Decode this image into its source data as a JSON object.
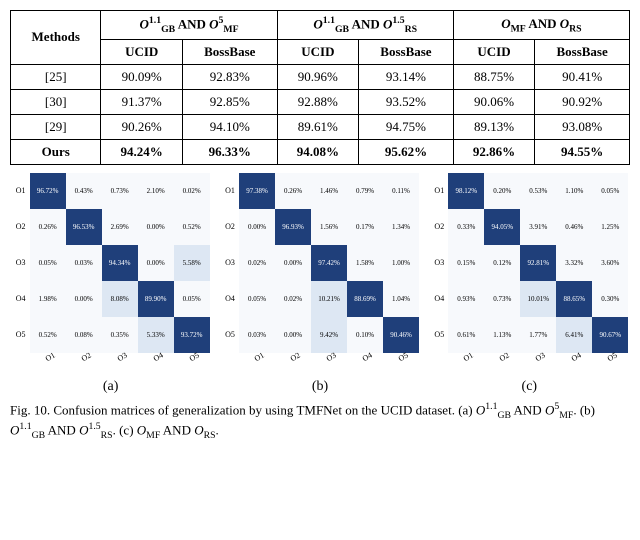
{
  "table": {
    "methods_header": "Methods",
    "group_headers": [
      {
        "o1": "O",
        "sub1": "GB",
        "sup1": "1.1",
        "mid": " AND ",
        "o2": "O",
        "sub2": "MF",
        "sup2": "5"
      },
      {
        "o1": "O",
        "sub1": "GB",
        "sup1": "1.1",
        "mid": " AND ",
        "o2": "O",
        "sub2": "RS",
        "sup2": "1.5"
      },
      {
        "o1": "O",
        "sub1": "MF",
        "sup1": "",
        "mid": " AND ",
        "o2": "O",
        "sub2": "RS",
        "sup2": ""
      }
    ],
    "sub_headers": [
      "UCID",
      "BossBase",
      "UCID",
      "BossBase",
      "UCID",
      "BossBase"
    ],
    "rows": [
      {
        "label": "[25]",
        "vals": [
          "90.09%",
          "92.83%",
          "90.96%",
          "93.14%",
          "88.75%",
          "90.41%"
        ],
        "bold": false
      },
      {
        "label": "[30]",
        "vals": [
          "91.37%",
          "92.85%",
          "92.88%",
          "93.52%",
          "90.06%",
          "90.92%"
        ],
        "bold": false
      },
      {
        "label": "[29]",
        "vals": [
          "90.26%",
          "94.10%",
          "89.61%",
          "94.75%",
          "89.13%",
          "93.08%"
        ],
        "bold": false
      },
      {
        "label": "Ours",
        "vals": [
          "94.24%",
          "96.33%",
          "94.08%",
          "95.62%",
          "92.86%",
          "94.55%"
        ],
        "bold": true
      }
    ]
  },
  "matrices": [
    {
      "labels": [
        "O1",
        "O2",
        "O3",
        "O4",
        "O5"
      ],
      "cells": [
        [
          "96.72%",
          "0.43%",
          "0.73%",
          "2.10%",
          "0.02%"
        ],
        [
          "0.26%",
          "96.53%",
          "2.69%",
          "0.00%",
          "0.52%"
        ],
        [
          "0.05%",
          "0.03%",
          "94.34%",
          "0.00%",
          "5.58%"
        ],
        [
          "1.98%",
          "0.00%",
          "8.08%",
          "89.90%",
          "0.05%"
        ],
        [
          "0.52%",
          "0.08%",
          "0.35%",
          "5.33%",
          "93.72%"
        ]
      ],
      "sub": "(a)"
    },
    {
      "labels": [
        "O1",
        "O2",
        "O3",
        "O4",
        "O5"
      ],
      "cells": [
        [
          "97.38%",
          "0.26%",
          "1.46%",
          "0.79%",
          "0.11%"
        ],
        [
          "0.00%",
          "96.93%",
          "1.56%",
          "0.17%",
          "1.34%"
        ],
        [
          "0.02%",
          "0.00%",
          "97.42%",
          "1.58%",
          "1.00%"
        ],
        [
          "0.05%",
          "0.02%",
          "10.21%",
          "88.69%",
          "1.04%"
        ],
        [
          "0.03%",
          "0.00%",
          "9.42%",
          "0.10%",
          "90.46%"
        ]
      ],
      "sub": "(b)"
    },
    {
      "labels": [
        "O1",
        "O2",
        "O3",
        "O4",
        "O5"
      ],
      "cells": [
        [
          "98.12%",
          "0.20%",
          "0.53%",
          "1.10%",
          "0.05%"
        ],
        [
          "0.33%",
          "94.05%",
          "3.91%",
          "0.46%",
          "1.25%"
        ],
        [
          "0.15%",
          "0.12%",
          "92.81%",
          "3.32%",
          "3.60%"
        ],
        [
          "0.93%",
          "0.73%",
          "10.01%",
          "88.65%",
          "0.30%"
        ],
        [
          "0.61%",
          "1.13%",
          "1.77%",
          "6.41%",
          "90.67%"
        ]
      ],
      "sub": "(c)"
    }
  ],
  "caption_prefix": "Fig. 10.  Confusion matrices of generalization by using TMFNet on the UCID dataset. (a) ",
  "caption_a": {
    "o1": "O",
    "sub1": "GB",
    "sup1": "1.1",
    "mid": " AND ",
    "o2": "O",
    "sub2": "MF",
    "sup2": "5"
  },
  "caption_b_prefix": ". (b) ",
  "caption_b": {
    "o1": "O",
    "sub1": "GB",
    "sup1": "1.1",
    "mid": " AND ",
    "o2": "O",
    "sub2": "RS",
    "sup2": "1.5"
  },
  "caption_c_prefix": ". (c) ",
  "caption_c": {
    "o1": "O",
    "sub1": "MF",
    "sup1": "",
    "mid": " AND ",
    "o2": "O",
    "sub2": "RS",
    "sup2": ""
  },
  "caption_end": ".",
  "colors": {
    "diag": "#1f3f7a",
    "mid": "#6a8fc6",
    "low": "#dde7f3",
    "zero": "#f7f9fc",
    "text_dark": "#000000",
    "text_light": "#ffffff"
  }
}
